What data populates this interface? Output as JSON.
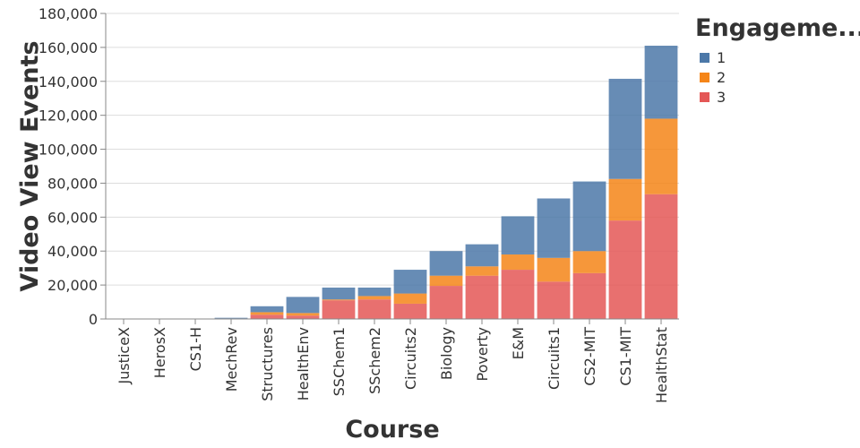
{
  "chart_data": {
    "type": "bar",
    "stacked": true,
    "title": "",
    "xlabel": "Course",
    "ylabel": "Video View Events",
    "ylim": [
      0,
      180000
    ],
    "yticks": [
      0,
      20000,
      40000,
      60000,
      80000,
      100000,
      120000,
      140000,
      160000,
      180000
    ],
    "ytick_labels": [
      "0",
      "20,000",
      "40,000",
      "60,000",
      "80,000",
      "100,000",
      "120,000",
      "140,000",
      "160,000",
      "180,000"
    ],
    "grid": true,
    "categories": [
      "JusticeX",
      "HerosX",
      "CS1-H",
      "MechRev",
      "Structures",
      "HealthEnv",
      "SSChem1",
      "SSchem2",
      "Circuits2",
      "Biology",
      "Poverty",
      "E&M",
      "Circuits1",
      "CS2-MIT",
      "CS1-MIT",
      "HealthStat"
    ],
    "legend": {
      "title": "Engageme...",
      "position": "top-right"
    },
    "series": [
      {
        "name": "3",
        "color": "#e45756",
        "values": [
          0,
          0,
          0,
          100,
          2500,
          2000,
          11000,
          11500,
          9000,
          19500,
          25500,
          29000,
          22000,
          27000,
          58000,
          73500
        ]
      },
      {
        "name": "2",
        "color": "#f58518",
        "values": [
          0,
          0,
          0,
          200,
          1500,
          1500,
          500,
          2000,
          6000,
          6000,
          5500,
          9000,
          14000,
          13000,
          24500,
          44500
        ]
      },
      {
        "name": "1",
        "color": "#4c78a8",
        "values": [
          0,
          0,
          0,
          400,
          3500,
          9500,
          7000,
          5000,
          14000,
          14500,
          13000,
          22500,
          35000,
          41000,
          59000,
          43000
        ]
      }
    ]
  }
}
